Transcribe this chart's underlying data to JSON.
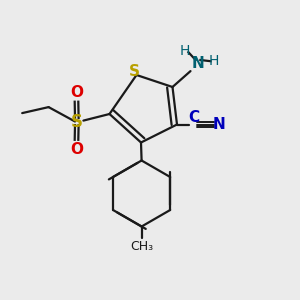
{
  "bg_color": "#ebebeb",
  "bond_color": "#1a1a1a",
  "S_thiophene_color": "#b8a000",
  "S_sulfonyl_color": "#b8a000",
  "N_color": "#006070",
  "O_color": "#dd0000",
  "CN_color": "#0000bb",
  "lw": 1.6,
  "fig_size": [
    3.0,
    3.0
  ],
  "dpi": 100,
  "xlim": [
    0,
    10
  ],
  "ylim": [
    0,
    10
  ]
}
